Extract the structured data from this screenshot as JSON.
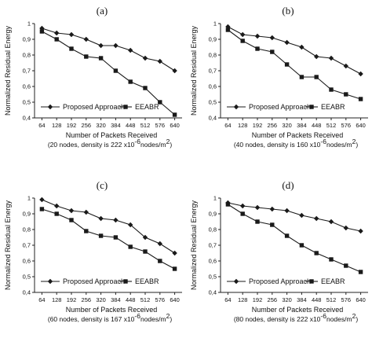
{
  "colors": {
    "series": "#1a1a1a",
    "axis": "#222222",
    "background": "#ffffff"
  },
  "legend": {
    "proposed": "Proposed Approach",
    "eeabr": "EEABR"
  },
  "chart_data": [
    {
      "type": "line",
      "panel_label": "(a)",
      "xlabel": "Number of Packets Received",
      "ylabel": "Normalized Residual Energy",
      "x": [
        64,
        128,
        192,
        256,
        320,
        384,
        448,
        512,
        576,
        640
      ],
      "ylim": [
        0.4,
        1.0
      ],
      "y_ticks": [
        "0,4",
        "0,5",
        "0,6",
        "0,7",
        "0,8",
        "0,9",
        "1"
      ],
      "series": [
        {
          "name": "Proposed Approach",
          "marker": "diamond",
          "values": [
            0.97,
            0.94,
            0.93,
            0.9,
            0.86,
            0.86,
            0.83,
            0.78,
            0.76,
            0.7
          ]
        },
        {
          "name": "EEABR",
          "marker": "square",
          "values": [
            0.95,
            0.9,
            0.84,
            0.79,
            0.78,
            0.7,
            0.63,
            0.59,
            0.5,
            0.42
          ]
        }
      ],
      "legend_position": "bottom",
      "caption": {
        "before": "(20 nodes, density is 222 x10",
        "sup": "-6",
        "after": "nodes/m",
        "sup2": "2",
        "end": ")"
      }
    },
    {
      "type": "line",
      "panel_label": "(b)",
      "xlabel": "Number of Packets Received",
      "ylabel": "Normalized Residual Energy",
      "x": [
        64,
        128,
        192,
        256,
        320,
        384,
        448,
        512,
        576,
        640
      ],
      "ylim": [
        0.4,
        1.0
      ],
      "y_ticks": [
        "0,4",
        "0,5",
        "0,6",
        "0,7",
        "0,8",
        "0,9",
        "1"
      ],
      "series": [
        {
          "name": "Proposed Approach",
          "marker": "diamond",
          "values": [
            0.98,
            0.93,
            0.92,
            0.91,
            0.88,
            0.85,
            0.79,
            0.78,
            0.73,
            0.68
          ]
        },
        {
          "name": "EEABR",
          "marker": "square",
          "values": [
            0.96,
            0.89,
            0.84,
            0.82,
            0.74,
            0.66,
            0.66,
            0.58,
            0.55,
            0.52
          ]
        }
      ],
      "legend_position": "bottom",
      "caption": {
        "before": "(40 nodes, density is 160 x10",
        "sup": "-6",
        "after": "nodes/m",
        "sup2": "2",
        "end": ")"
      }
    },
    {
      "type": "line",
      "panel_label": "(c)",
      "xlabel": "Number of Packets Received",
      "ylabel": "Normalized Residual Energy",
      "x": [
        64,
        128,
        192,
        256,
        320,
        384,
        448,
        512,
        576,
        640
      ],
      "ylim": [
        0.4,
        1.0
      ],
      "y_ticks": [
        "0,4",
        "0,5",
        "0,6",
        "0,7",
        "0,8",
        "0,9",
        "1"
      ],
      "series": [
        {
          "name": "Proposed Approach",
          "marker": "diamond",
          "values": [
            0.99,
            0.95,
            0.92,
            0.91,
            0.87,
            0.86,
            0.83,
            0.75,
            0.71,
            0.65
          ]
        },
        {
          "name": "EEABR",
          "marker": "square",
          "values": [
            0.93,
            0.9,
            0.86,
            0.79,
            0.76,
            0.75,
            0.69,
            0.66,
            0.6,
            0.55
          ]
        }
      ],
      "legend_position": "bottom",
      "caption": {
        "before": "(60 nodes, density is 167 x10",
        "sup": "-6",
        "after": "nodes/m",
        "sup2": "2",
        "end": ")"
      }
    },
    {
      "type": "line",
      "panel_label": "(d)",
      "xlabel": "Number of Packets Received",
      "ylabel": "Normalized Residual Energy",
      "x": [
        64,
        128,
        192,
        256,
        320,
        384,
        448,
        512,
        576,
        640
      ],
      "ylim": [
        0.4,
        1.0
      ],
      "y_ticks": [
        "0,4",
        "0,5",
        "0,6",
        "0,7",
        "0,8",
        "0,9",
        "1"
      ],
      "series": [
        {
          "name": "Proposed Approach",
          "marker": "diamond",
          "values": [
            0.97,
            0.95,
            0.94,
            0.93,
            0.92,
            0.89,
            0.87,
            0.85,
            0.81,
            0.79
          ]
        },
        {
          "name": "EEABR",
          "marker": "square",
          "values": [
            0.96,
            0.9,
            0.85,
            0.83,
            0.76,
            0.7,
            0.65,
            0.61,
            0.57,
            0.53
          ]
        }
      ],
      "legend_position": "bottom",
      "caption": {
        "before": "(80 nodes, density is 222 x10",
        "sup": "-6",
        "after": "nodes/m",
        "sup2": "2",
        "end": ")"
      }
    }
  ]
}
